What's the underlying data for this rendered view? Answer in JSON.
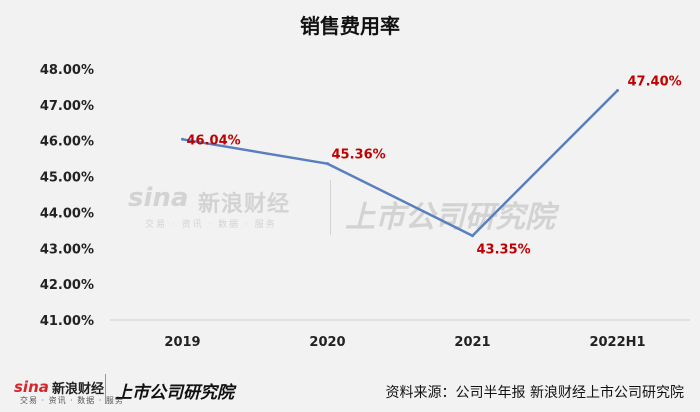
{
  "chart_data": {
    "type": "line",
    "title": "销售费用率",
    "categories": [
      "2019",
      "2020",
      "2021",
      "2022H1"
    ],
    "values": [
      46.04,
      45.36,
      43.35,
      47.4
    ],
    "data_labels": [
      "46.04%",
      "45.36%",
      "43.35%",
      "47.40%"
    ],
    "ylim": [
      41,
      48
    ],
    "yticks": [
      "41.00%",
      "42.00%",
      "43.00%",
      "44.00%",
      "45.00%",
      "46.00%",
      "47.00%",
      "48.00%"
    ],
    "grid": false,
    "line_color": "#5a7fbf",
    "label_color": "#c00000"
  },
  "watermark": {
    "sina": "sina",
    "name": "新浪财经",
    "tagline": "交易 · 资讯 · 数据 · 服务",
    "brand": "上市公司研究院"
  },
  "footer": {
    "sina": "sina",
    "name": "新浪财经",
    "tagline": "交易 · 资讯 · 数据 · 服务",
    "brand": "上市公司研究院",
    "source": "资料来源：公司半年报 新浪财经上市公司研究院"
  }
}
